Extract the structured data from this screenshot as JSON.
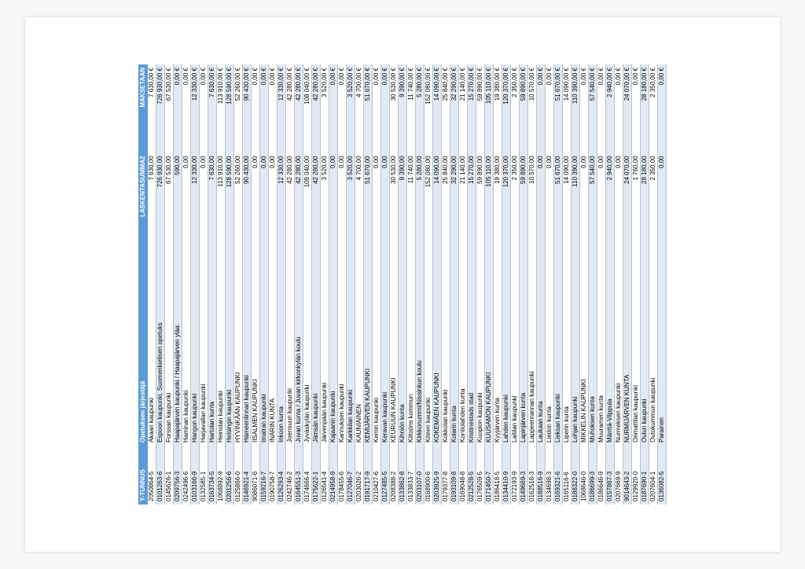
{
  "table": {
    "header_bg": "#5b9bd5",
    "header_fg": "#ffffff",
    "row_alt_bg": "#deeaf6",
    "row_bg": "#ffffff",
    "border_color": "#bfbfbf",
    "columns": [
      {
        "key": "y",
        "label": "Y-TUNNUS",
        "align": "left"
      },
      {
        "key": "org",
        "label": "Opetuksen järjestäjä",
        "align": "left"
      },
      {
        "key": "sum",
        "label": "LASKENTASUMMA2",
        "align": "right"
      },
      {
        "key": "pay",
        "label": "MAKSETAAN",
        "align": "right"
      }
    ],
    "rows": [
      {
        "y": "2050864-5",
        "org": "Akaan kaupunki",
        "sum": "7 630,00",
        "pay": "7 630,00 €"
      },
      {
        "y": "0101263-6",
        "org": "Espoon kaupunki, Suomenkielisen opetuks",
        "sum": "726 930,00",
        "pay": "726 930,00 €"
      },
      {
        "y": "0145626-1",
        "org": "Forssan kaupunki",
        "sum": "67 530,00",
        "pay": "67 530,00 €"
      },
      {
        "y": "0209756-3",
        "org": "Haapajärven kaupunki / Haapajärven yläa:",
        "sum": "590,00",
        "pay": "0,00 €"
      },
      {
        "y": "0242496-6",
        "org": "Haminan kaupunki",
        "sum": "0,00",
        "pay": "0,00 €"
      },
      {
        "y": "0103166-9",
        "org": "Hangon kaupunki",
        "sum": "12 330,00",
        "pay": "12 330,00 €"
      },
      {
        "y": "0132585-1",
        "org": "Harjavallan kaupunki",
        "sum": "0,00",
        "pay": "0,00 €"
      },
      {
        "y": "0163734-5",
        "org": "Hartolan kunta",
        "sum": "7 630,00",
        "pay": "7 630,00 €"
      },
      {
        "y": "1068892-9",
        "org": "Heinolan kaupunki",
        "sum": "113 910,00",
        "pay": "113 910,00 €"
      },
      {
        "y": "0201256-6",
        "org": "Helsingin kaupunki",
        "sum": "128 590,00",
        "pay": "128 590,00 €"
      },
      {
        "y": "0125866-0",
        "org": "HYVINKÄÄN KAUPUNKI",
        "sum": "52 260,00",
        "pay": "52 260,00 €"
      },
      {
        "y": "0146921-4",
        "org": "Hämeenlinnan kaupunki",
        "sum": "90 430,00",
        "pay": "90 430,00 €"
      },
      {
        "y": "9086071-6",
        "org": "IISALMEN KAUPUNKI",
        "sum": "0,00",
        "pay": "0,00 €"
      },
      {
        "y": "0159216-7",
        "org": "Imatran kaupunki",
        "sum": "0,00",
        "pay": "0,00 €"
      },
      {
        "y": "0190758-7",
        "org": "INARIN KUNTA",
        "sum": "0,00",
        "pay": "0,00 €"
      },
      {
        "y": "0126293-4",
        "org": "Inkoon kunta",
        "sum": "12 330,00",
        "pay": "12 330,00 €"
      },
      {
        "y": "0242746-2",
        "org": "Joensuun kaupunki",
        "sum": "42 280,00",
        "pay": "42 280,00 €"
      },
      {
        "y": "0164551-3",
        "org": "Juvan kunta / Juvan kirkonkylän koulu",
        "sum": "42 280,00",
        "pay": "42 280,00 €"
      },
      {
        "y": "0174666-4",
        "org": "Jyväskylän kaupunki",
        "sum": "108 040,00",
        "pay": "108 040,00 €"
      },
      {
        "y": "0175622-1",
        "org": "Jämsän kaupunki",
        "sum": "42 280,00",
        "pay": "42 280,00 €"
      },
      {
        "y": "0126541-4",
        "org": "Järvenpään kaupunki",
        "sum": "3 520,00",
        "pay": "3 520,00 €"
      },
      {
        "y": "0214958-9",
        "org": "Kajaanin kaupunki",
        "sum": "0,00",
        "pay": "0,00 €"
      },
      {
        "y": "0178455-6",
        "org": "Kannuksen kaupunki",
        "sum": "0,00",
        "pay": "0,00 €"
      },
      {
        "y": "0127046-7",
        "org": "Karkkilan kaupunki",
        "sum": "3 520,00",
        "pay": "3 520,00 €"
      },
      {
        "y": "0203026-2",
        "org": "KAUNIAINEN",
        "sum": "4 700,00",
        "pay": "4 700,00 €"
      },
      {
        "y": "0191717-9",
        "org": "KEMIJÄRVEN KAUPUNKI",
        "sum": "51 670,00",
        "pay": "51 670,00 €"
      },
      {
        "y": "0210427-6",
        "org": "Kemin kaupunki",
        "sum": "0,00",
        "pay": "0,00 €"
      },
      {
        "y": "0127485-5",
        "org": "Keravan kaupunki",
        "sum": "0,00",
        "pay": "0,00 €"
      },
      {
        "y": "0208388-2",
        "org": "KEURUUN KAUPUNKI",
        "sum": "30 530,00",
        "pay": "30 530,00 €"
      },
      {
        "y": "0133862-8",
        "org": "Kihniön kunta",
        "sum": "9 390,00",
        "pay": "9 390,00 €"
      },
      {
        "y": "0133833-7",
        "org": "Kiitoöns kommun",
        "sum": "11 740,00",
        "pay": "11 740,00 €"
      },
      {
        "y": "0203107-0",
        "org": "Kirkkonummi/Nissinkun koulu",
        "sum": "5 280,00",
        "pay": "5 280,00 €"
      },
      {
        "y": "0168900-6",
        "org": "Kiteen kaupunki",
        "sum": "152 080,00",
        "pay": "152 080,00 €"
      },
      {
        "y": "0203925-9",
        "org": "KOKEMÄEN KAUPUNKI",
        "sum": "14 090,00",
        "pay": "14 090,00 €"
      },
      {
        "y": "0179377-8",
        "org": "Kokkolan kaupunki",
        "sum": "25 840,00",
        "pay": "25 840,00 €"
      },
      {
        "y": "0193109-8",
        "org": "Kolarin kunta",
        "sum": "32 290,00",
        "pay": "32 290,00 €"
      },
      {
        "y": "0169048-8",
        "org": "Kontiolahden kunta",
        "sum": "21 140,00",
        "pay": "21 140,00 €"
      },
      {
        "y": "0212528-5",
        "org": "Kristinestads stad",
        "sum": "15 270,00",
        "pay": "15 270,00 €"
      },
      {
        "y": "0176509-5",
        "org": "Kuopion kaupunki",
        "sum": "59 890,00",
        "pay": "59 890,00 €"
      },
      {
        "y": "0171450-7",
        "org": "KUUSAMON KAUPUNKI",
        "sum": "105 110,00",
        "pay": "105 110,00 €"
      },
      {
        "y": "0186418-5",
        "org": "Kyyjärven kunta",
        "sum": "19 380,00",
        "pay": "19 380,00 €"
      },
      {
        "y": "0134410-9",
        "org": "Lahden kaupunki",
        "sum": "120 370,00",
        "pay": "120 370,00 €"
      },
      {
        "y": "0172193-9",
        "org": "Laitilan kaupunki",
        "sum": "2 350,00",
        "pay": "2 350,00 €"
      },
      {
        "y": "0149669-3",
        "org": "Lapinjärven kunta",
        "sum": "59 890,00",
        "pay": "59 890,00 €"
      },
      {
        "y": "0162516-3",
        "org": "Lappeenrannan kaupunki",
        "sum": "10 570,00",
        "pay": "10 570,00 €"
      },
      {
        "y": "0188516-9",
        "org": "Laukaan kunta",
        "sum": "0,00",
        "pay": "0,00 €"
      },
      {
        "y": "0134698-3",
        "org": "Liedon kunta",
        "sum": "0,00",
        "pay": "0,00 €"
      },
      {
        "y": "0169321-6",
        "org": "Lieksan kaupunki",
        "sum": "51 670,00",
        "pay": "51 670,00 €"
      },
      {
        "y": "0165116-6",
        "org": "Liperin kunta",
        "sum": "14 090,00",
        "pay": "14 090,00 €"
      },
      {
        "y": "0188322-0",
        "org": "Lohjan kaupunki",
        "sum": "110 390,00",
        "pay": "110 390,00 €"
      },
      {
        "y": "1068646-0",
        "org": "MIKKELIN KAUPUNKI",
        "sum": "0,00",
        "pay": "0,00 €"
      },
      {
        "y": "0186699-3",
        "org": "Muhoksen kunta",
        "sum": "57 540,00",
        "pay": "57 540,00 €"
      },
      {
        "y": "0186646-9",
        "org": "Muuramen kunta",
        "sum": "0,00",
        "pay": "0,00 €"
      },
      {
        "y": "0157867-3",
        "org": "Mänttä-Vilppula",
        "sum": "2 940,00",
        "pay": "2 940,00 €"
      },
      {
        "y": "0207669-9",
        "org": "Nurmeksen kaupunki",
        "sum": "0,00",
        "pay": "0,00 €"
      },
      {
        "y": "9014643-2",
        "org": "NURMIJÄRVEN KUNTA",
        "sum": "24 070,00",
        "pay": "24 070,00 €"
      },
      {
        "y": "0129920-0",
        "org": "Orimattilan kaupunki",
        "sum": "1 760,00",
        "pay": "0,00 €"
      },
      {
        "y": "0187690-1",
        "org": "Oulun kaupunki",
        "sum": "28 180,00",
        "pay": "28 180,00 €"
      },
      {
        "y": "0207604-1",
        "org": "Outokummun kaupunki",
        "sum": "2 350,00",
        "pay": "2 350,00 €"
      },
      {
        "y": "0136082-5",
        "org": "Parainen",
        "sum": "0,00",
        "pay": "0,00 €"
      }
    ]
  }
}
